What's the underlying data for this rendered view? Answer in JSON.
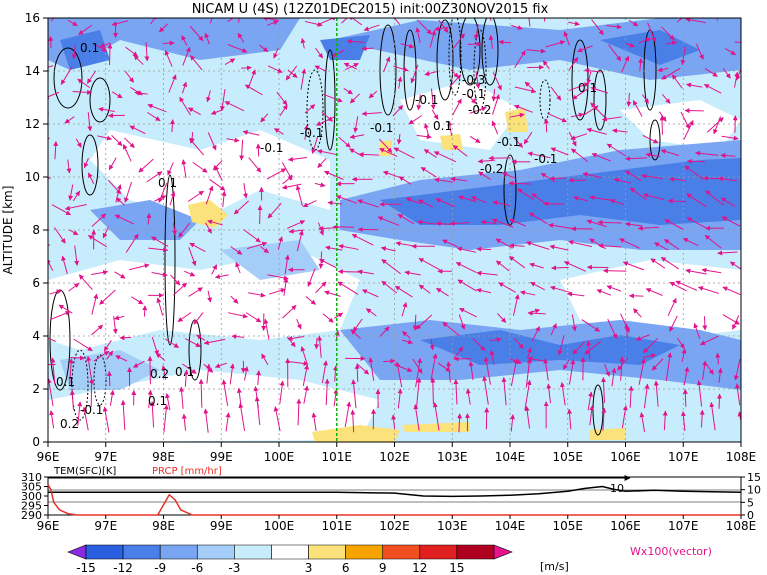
{
  "chart_data": [
    {
      "type": "heatmap",
      "title": "NICAM U (4S) (12Z01DEC2015) init:00Z30NOV2015 fix",
      "xlabel": "",
      "ylabel": "ALTITUDE [km]",
      "x_ticks": [
        "96E",
        "97E",
        "98E",
        "99E",
        "100E",
        "101E",
        "102E",
        "103E",
        "104E",
        "105E",
        "106E",
        "107E",
        "108E"
      ],
      "xlim": [
        96,
        108
      ],
      "y_ticks": [
        "0",
        "2",
        "4",
        "6",
        "8",
        "10",
        "12",
        "14",
        "16"
      ],
      "ylim": [
        0,
        16
      ],
      "grid": true,
      "marker_longitude": 101,
      "contour_labels": [
        "0.1",
        "-0.1",
        "0.1",
        "-0.1",
        "-0.1",
        "-0.1",
        "-0.1",
        "-0.2",
        "-0.3",
        "0.1",
        "-0.2",
        "-0.1",
        "-0.1",
        "0.1",
        "0.2",
        "0.1",
        "0.1",
        "-0.1",
        "0.2",
        "0.1",
        "-0.2"
      ],
      "vector_legend": "Wx100(vector)",
      "colorbar": {
        "ticks": [
          "-15",
          "-12",
          "-9",
          "-6",
          "-3",
          "3",
          "6",
          "9",
          "12",
          "15"
        ],
        "unit": "[m/s]",
        "colors": [
          "#8a2be2",
          "#2a5fe0",
          "#4a7fe8",
          "#7aa5f2",
          "#a4cdf8",
          "#c7ecfb",
          "#ffffff",
          "#fbe27a",
          "#f7a400",
          "#f05020",
          "#e02020",
          "#b00020",
          "#e8138c"
        ]
      }
    },
    {
      "type": "line",
      "title": "",
      "series": [
        {
          "name": "TEM(SFC)[K]",
          "color": "#000000",
          "x": [
            96,
            97,
            98,
            99,
            100,
            101,
            102,
            102.5,
            103,
            103.5,
            104,
            104.5,
            105,
            105.3,
            105.6,
            105.8,
            106,
            106.5,
            107,
            108
          ],
          "y": [
            302,
            302,
            302,
            302,
            302,
            302,
            301.5,
            300,
            299.8,
            300,
            300.4,
            301.2,
            302.5,
            304,
            305,
            303.5,
            302.5,
            303,
            302.5,
            302
          ]
        },
        {
          "name": "PRCP [mm/hr]",
          "color": "#e8302a",
          "x": [
            96,
            96.05,
            96.1,
            96.2,
            96.35,
            96.5,
            97,
            97.9,
            98.0,
            98.1,
            98.2,
            98.3,
            98.5,
            99,
            100,
            108
          ],
          "y": [
            12,
            10,
            5,
            2,
            0.5,
            0,
            0,
            0,
            4,
            8,
            6,
            2,
            0,
            0,
            0,
            0
          ]
        }
      ],
      "x_ticks": [
        "96E",
        "97E",
        "98E",
        "99E",
        "100E",
        "101E",
        "102E",
        "103E",
        "104E",
        "105E",
        "106E",
        "107E",
        "108E"
      ],
      "xlim": [
        96,
        108
      ],
      "y_left_ticks": [
        "290",
        "295",
        "300",
        "305",
        "310"
      ],
      "y_left_range": [
        290,
        310
      ],
      "y_right_ticks": [
        "0",
        "5",
        "10",
        "15"
      ],
      "y_right_range": [
        0,
        15
      ],
      "annotation": "10"
    }
  ]
}
